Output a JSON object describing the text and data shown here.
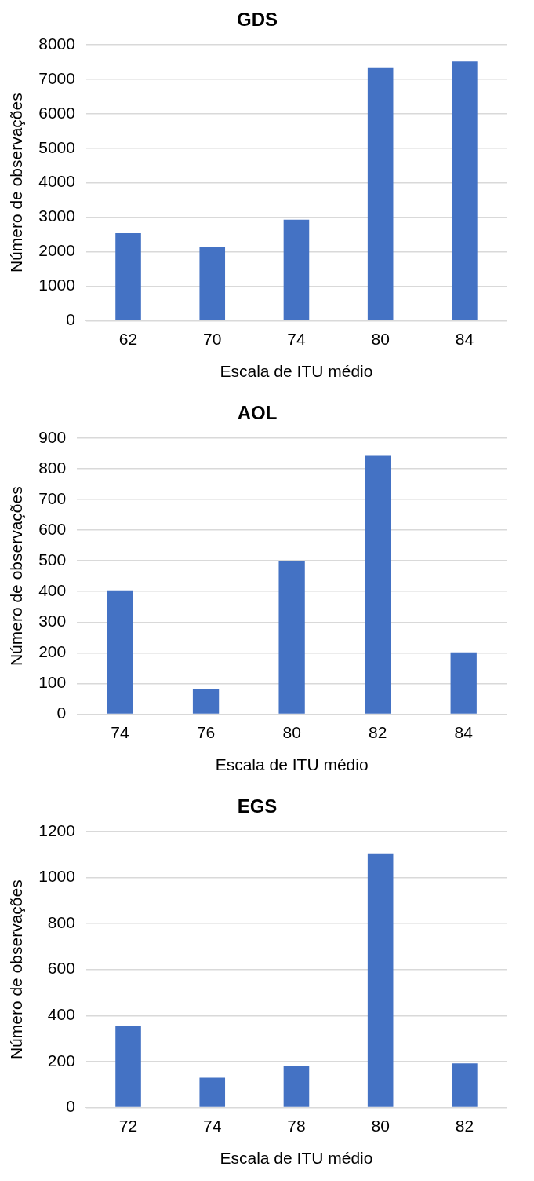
{
  "chart_data": [
    {
      "type": "bar",
      "title": "GDS",
      "xlabel": "Escala de ITU médio",
      "ylabel": "Número de observações",
      "categories": [
        "62",
        "70",
        "74",
        "80",
        "84"
      ],
      "values": [
        2540,
        2150,
        2930,
        7340,
        7510
      ],
      "color": "#4472c4",
      "ylim": [
        0,
        8000
      ],
      "yticks": [
        0,
        1000,
        2000,
        3000,
        4000,
        5000,
        6000,
        7000,
        8000
      ],
      "grid": "y"
    },
    {
      "type": "bar",
      "title": "AOL",
      "xlabel": "Escala de ITU médio",
      "ylabel": "Número de observações",
      "categories": [
        "74",
        "76",
        "80",
        "82",
        "84"
      ],
      "values": [
        404,
        81,
        500,
        842,
        202
      ],
      "color": "#4472c4",
      "ylim": [
        0,
        900
      ],
      "yticks": [
        0,
        100,
        200,
        300,
        400,
        500,
        600,
        700,
        800,
        900
      ],
      "grid": "y"
    },
    {
      "type": "bar",
      "title": "EGS",
      "xlabel": "Escala de ITU médio",
      "ylabel": "Número de observações",
      "categories": [
        "72",
        "74",
        "78",
        "80",
        "82"
      ],
      "values": [
        353,
        130,
        179,
        1105,
        192
      ],
      "color": "#4472c4",
      "ylim": [
        0,
        1200
      ],
      "yticks": [
        0,
        200,
        400,
        600,
        800,
        1000,
        1200
      ],
      "grid": "y"
    }
  ]
}
